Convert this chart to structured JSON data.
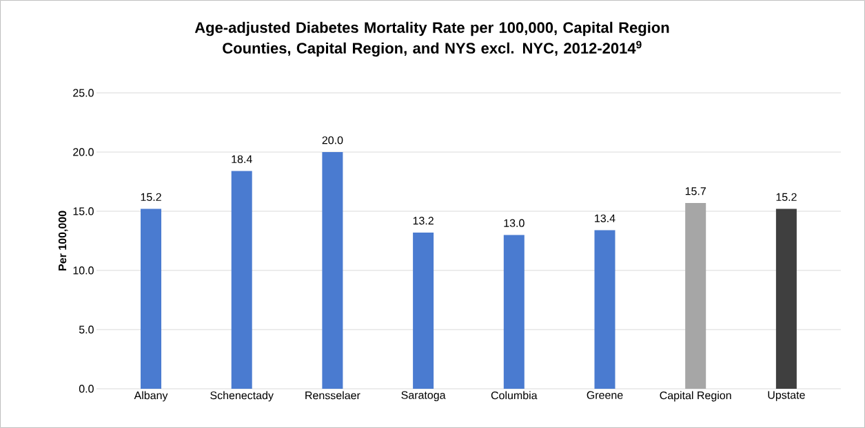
{
  "chart_data": {
    "type": "bar",
    "title": "Age-adjusted Diabetes Mortality Rate per 100,000, Capital Region Counties, Capital Region, and NYS excl. NYC, 2012-2014$^{9}$",
    "ylabel": "Per 100,000",
    "categories": [
      "Albany",
      "Schenectady",
      "Rensselaer",
      "Saratoga",
      "Columbia",
      "Greene",
      "Capital Region",
      "Upstate"
    ],
    "values": [
      15.2,
      18.4,
      20.0,
      13.2,
      13.0,
      13.4,
      15.7,
      15.2
    ],
    "colors": [
      "#4a7bd0",
      "#4a7bd0",
      "#4a7bd0",
      "#4a7bd0",
      "#4a7bd0",
      "#4a7bd0",
      "#a6a6a6",
      "#3f3f3f"
    ],
    "ylim": [
      0,
      25
    ],
    "yticks": [
      {
        "value": 0,
        "label": "0.0"
      },
      {
        "value": 5,
        "label": "5.0"
      },
      {
        "value": 10,
        "label": "10.0"
      },
      {
        "value": 15,
        "label": "15.0"
      },
      {
        "value": 20,
        "label": "20.0"
      },
      {
        "value": 25,
        "label": "25.0"
      }
    ],
    "grid": "y",
    "value_labels": [
      "15.2",
      "18.4",
      "20.0",
      "13.2",
      "13.0",
      "13.4",
      "15.7",
      "15.2"
    ]
  }
}
